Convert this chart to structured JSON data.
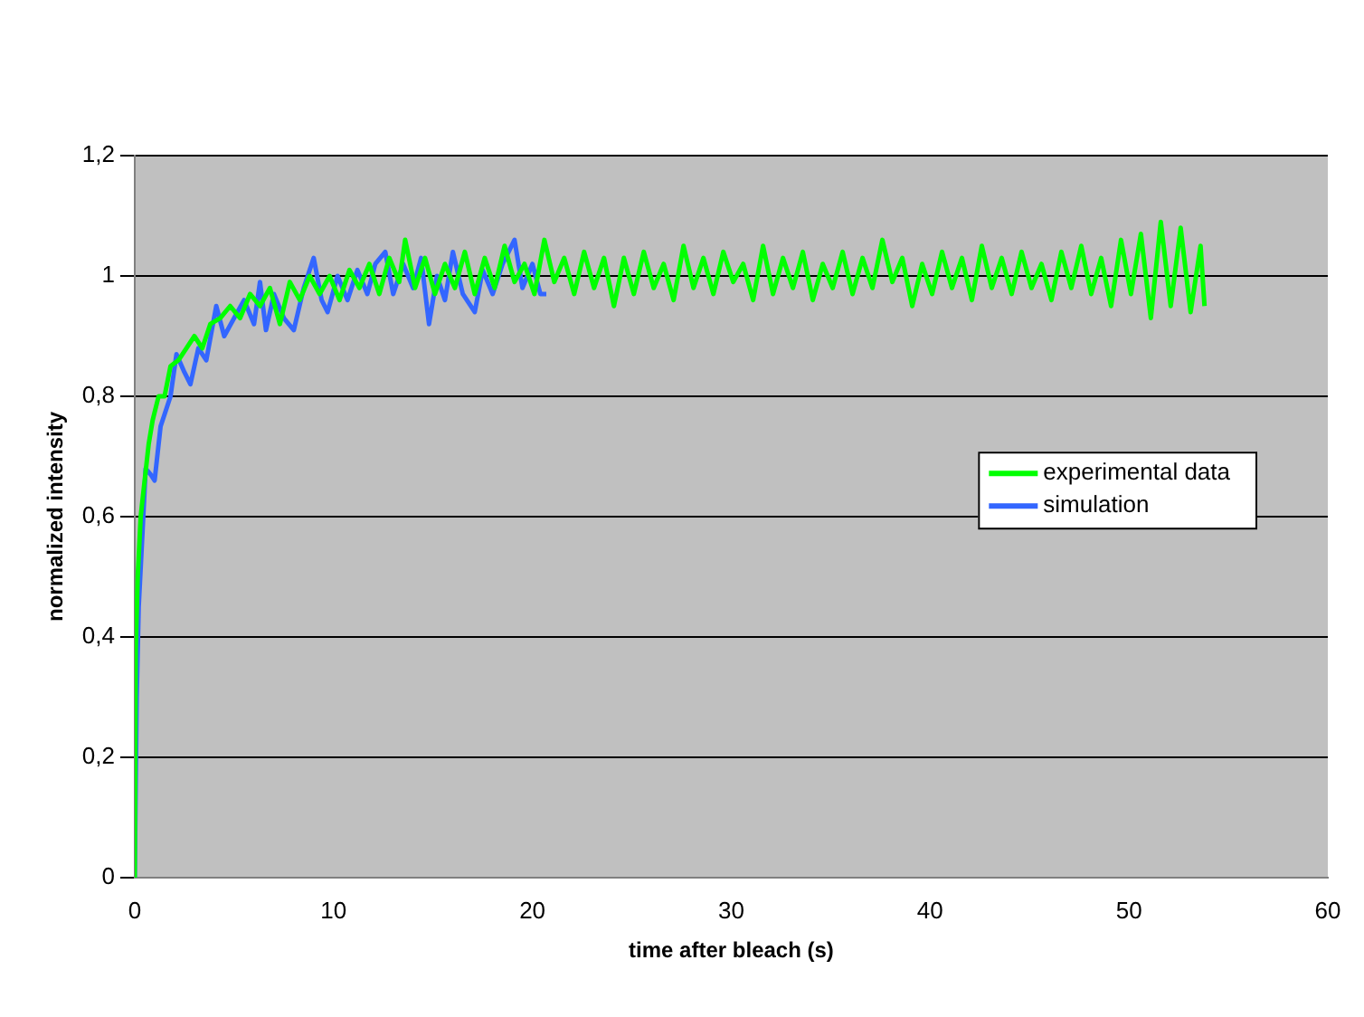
{
  "chart_data": {
    "type": "line",
    "xlabel": "time after bleach (s)",
    "ylabel": "normalized intensity",
    "xlim": [
      0,
      60
    ],
    "xticks": [
      0,
      10,
      20,
      30,
      40,
      50,
      60
    ],
    "ylim": [
      0,
      1.2
    ],
    "yticks": [
      0,
      {
        "value": 0.2,
        "label": "0,2"
      },
      {
        "value": 0.4,
        "label": "0,4"
      },
      {
        "value": 0.6,
        "label": "0,6"
      },
      {
        "value": 0.8,
        "label": "0,8"
      },
      1,
      {
        "value": 1.2,
        "label": "1,2"
      }
    ],
    "grid": "y",
    "legend": "right",
    "marker": "none",
    "line_style": "solid",
    "series": [
      {
        "name": "experimental data",
        "color": "#00ff00",
        "x": [
          0,
          0.05,
          0.15,
          0.3,
          0.5,
          0.7,
          0.9,
          1.2,
          1.5,
          1.8,
          2.2,
          2.6,
          3.0,
          3.4,
          3.8,
          4.3,
          4.8,
          5.3,
          5.8,
          6.3,
          6.8,
          7.3,
          7.8,
          8.3,
          8.8,
          9.3,
          9.8,
          10.3,
          10.8,
          11.3,
          11.8,
          12.3,
          12.8,
          13.3,
          13.6,
          14.1,
          14.6,
          15.1,
          15.6,
          16.1,
          16.6,
          17.1,
          17.6,
          18.1,
          18.6,
          19.1,
          19.6,
          20.1,
          20.6,
          21.1,
          21.6,
          22.1,
          22.6,
          23.1,
          23.6,
          24.1,
          24.6,
          25.1,
          25.6,
          26.1,
          26.6,
          27.1,
          27.6,
          28.1,
          28.6,
          29.1,
          29.6,
          30.1,
          30.6,
          31.1,
          31.6,
          32.1,
          32.6,
          33.1,
          33.6,
          34.1,
          34.6,
          35.1,
          35.6,
          36.1,
          36.6,
          37.1,
          37.6,
          38.1,
          38.6,
          39.1,
          39.6,
          40.1,
          40.6,
          41.1,
          41.6,
          42.1,
          42.6,
          43.1,
          43.6,
          44.1,
          44.6,
          45.1,
          45.6,
          46.1,
          46.6,
          47.1,
          47.6,
          48.1,
          48.6,
          49.1,
          49.6,
          50.1,
          50.6,
          51.1,
          51.6,
          52.1,
          52.6,
          53.1,
          53.6,
          53.8
        ],
        "values": [
          0,
          0.38,
          0.5,
          0.6,
          0.66,
          0.72,
          0.76,
          0.8,
          0.8,
          0.85,
          0.86,
          0.88,
          0.9,
          0.88,
          0.92,
          0.93,
          0.95,
          0.93,
          0.97,
          0.95,
          0.98,
          0.92,
          0.99,
          0.96,
          1.0,
          0.97,
          1.0,
          0.96,
          1.01,
          0.98,
          1.02,
          0.97,
          1.03,
          0.99,
          1.06,
          0.98,
          1.03,
          0.97,
          1.02,
          0.98,
          1.04,
          0.97,
          1.03,
          0.98,
          1.05,
          0.99,
          1.02,
          0.97,
          1.06,
          0.99,
          1.03,
          0.97,
          1.04,
          0.98,
          1.03,
          0.95,
          1.03,
          0.97,
          1.04,
          0.98,
          1.02,
          0.96,
          1.05,
          0.98,
          1.03,
          0.97,
          1.04,
          0.99,
          1.02,
          0.96,
          1.05,
          0.97,
          1.03,
          0.98,
          1.04,
          0.96,
          1.02,
          0.98,
          1.04,
          0.97,
          1.03,
          0.98,
          1.06,
          0.99,
          1.03,
          0.95,
          1.02,
          0.97,
          1.04,
          0.98,
          1.03,
          0.96,
          1.05,
          0.98,
          1.03,
          0.97,
          1.04,
          0.98,
          1.02,
          0.96,
          1.04,
          0.98,
          1.05,
          0.97,
          1.03,
          0.95,
          1.06,
          0.97,
          1.07,
          0.93,
          1.09,
          0.95,
          1.08,
          0.94,
          1.05,
          0.95
        ]
      },
      {
        "name": "simulation",
        "color": "#3366ff",
        "x": [
          0,
          0.1,
          0.2,
          0.4,
          0.55,
          0.8,
          1.0,
          1.3,
          1.5,
          1.8,
          2.1,
          2.5,
          2.8,
          3.2,
          3.6,
          4.1,
          4.5,
          5.0,
          5.5,
          6.0,
          6.3,
          6.6,
          7.0,
          7.5,
          8.0,
          8.5,
          9.0,
          9.4,
          9.7,
          10.2,
          10.7,
          11.2,
          11.7,
          12.1,
          12.6,
          13.0,
          13.5,
          14.0,
          14.4,
          14.8,
          15.2,
          15.6,
          16.0,
          16.5,
          17.1,
          17.5,
          18.0,
          18.5,
          19.1,
          19.5,
          20.0,
          20.4,
          20.7
        ],
        "values": [
          0,
          0.3,
          0.45,
          0.58,
          0.68,
          0.67,
          0.66,
          0.75,
          0.77,
          0.8,
          0.87,
          0.84,
          0.82,
          0.88,
          0.86,
          0.95,
          0.9,
          0.93,
          0.96,
          0.92,
          0.99,
          0.91,
          0.97,
          0.93,
          0.91,
          0.98,
          1.03,
          0.96,
          0.94,
          1.0,
          0.96,
          1.01,
          0.97,
          1.02,
          1.04,
          0.97,
          1.02,
          0.98,
          1.03,
          0.92,
          1.0,
          0.96,
          1.04,
          0.97,
          0.94,
          1.01,
          0.97,
          1.02,
          1.06,
          0.98,
          1.02,
          0.97,
          0.97
        ]
      }
    ]
  }
}
